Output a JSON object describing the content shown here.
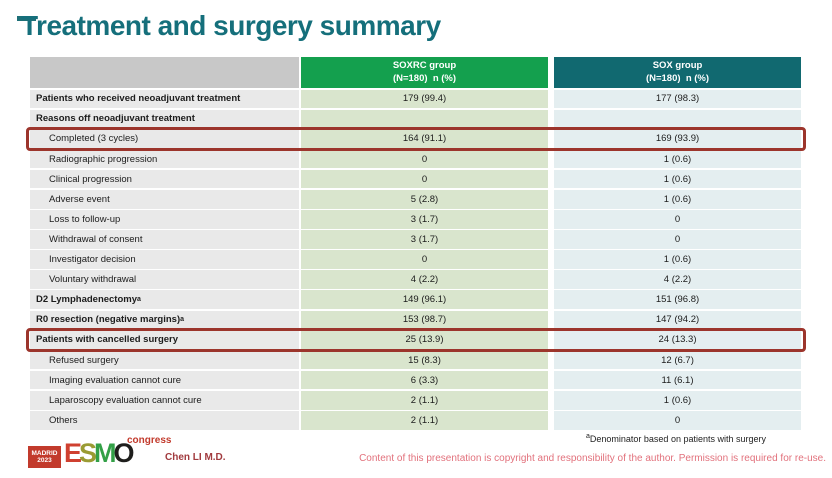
{
  "slide_title": "Treatment and surgery summary",
  "table": {
    "header": {
      "soxrc": {
        "line1": "SOXRC group",
        "line2": "(N=180)  n (%)"
      },
      "sox": {
        "line1": "SOX group",
        "line2": "(N=180)  n (%)"
      }
    },
    "rows": [
      {
        "label": "Patients who received neoadjuvant treatment",
        "bold": true,
        "indent": false,
        "soxrc": "179 (99.4)",
        "sox": "177 (98.3)",
        "highlight": false
      },
      {
        "label": "Reasons off neoadjuvant treatment",
        "bold": true,
        "indent": false,
        "soxrc": "",
        "sox": "",
        "highlight": false
      },
      {
        "label": "Completed (3 cycles)",
        "bold": false,
        "indent": true,
        "soxrc": "164 (91.1)",
        "sox": "169 (93.9)",
        "highlight": true
      },
      {
        "label": "Radiographic progression",
        "bold": false,
        "indent": true,
        "soxrc": "0",
        "sox": "1 (0.6)",
        "highlight": false
      },
      {
        "label": "Clinical progression",
        "bold": false,
        "indent": true,
        "soxrc": "0",
        "sox": "1 (0.6)",
        "highlight": false
      },
      {
        "label": "Adverse event",
        "bold": false,
        "indent": true,
        "soxrc": "5 (2.8)",
        "sox": "1 (0.6)",
        "highlight": false
      },
      {
        "label": "Loss to follow-up",
        "bold": false,
        "indent": true,
        "soxrc": "3 (1.7)",
        "sox": "0",
        "highlight": false
      },
      {
        "label": "Withdrawal of consent",
        "bold": false,
        "indent": true,
        "soxrc": "3 (1.7)",
        "sox": "0",
        "highlight": false
      },
      {
        "label": "Investigator decision",
        "bold": false,
        "indent": true,
        "soxrc": "0",
        "sox": "1 (0.6)",
        "highlight": false
      },
      {
        "label": "Voluntary withdrawal",
        "bold": false,
        "indent": true,
        "soxrc": "4 (2.2)",
        "sox": "4 (2.2)",
        "highlight": false
      },
      {
        "label": "D2 Lymphadenectomy",
        "sup": "a",
        "bold": true,
        "indent": false,
        "soxrc": "149 (96.1)",
        "sox": "151 (96.8)",
        "highlight": false
      },
      {
        "label": "R0 resection (negative margins)",
        "sup": "a",
        "bold": true,
        "indent": false,
        "soxrc": "153 (98.7)",
        "sox": "147 (94.2)",
        "highlight": false
      },
      {
        "label": "Patients with cancelled surgery",
        "bold": true,
        "indent": false,
        "soxrc": "25 (13.9)",
        "sox": "24 (13.3)",
        "highlight": true
      },
      {
        "label": "Refused surgery",
        "bold": false,
        "indent": true,
        "soxrc": "15 (8.3)",
        "sox": "12 (6.7)",
        "highlight": false
      },
      {
        "label": "Imaging evaluation cannot cure",
        "bold": false,
        "indent": true,
        "soxrc": "6 (3.3)",
        "sox": "11 (6.1)",
        "highlight": false
      },
      {
        "label": "Laparoscopy evaluation cannot cure",
        "bold": false,
        "indent": true,
        "soxrc": "2 (1.1)",
        "sox": "1 (0.6)",
        "highlight": false
      },
      {
        "label": "Others",
        "bold": false,
        "indent": true,
        "soxrc": "2 (1.1)",
        "sox": "0",
        "highlight": false
      }
    ]
  },
  "footnote": {
    "sup": "a",
    "text": "Denominator based on patients with surgery"
  },
  "footer": {
    "presenter": "Chen LI M.D.",
    "copyright": "Content of this presentation is copyright and responsibility of the author. Permission is required for re-use.",
    "logo": {
      "badge_line1": "MADRID",
      "badge_line2": "2023",
      "letter_e": "E",
      "letter_s": "S",
      "letter_m": "M",
      "letter_o": "O",
      "congress": "congress"
    }
  },
  "colors": {
    "title_text": "#156f7b",
    "soxrc_header_bg": "#14a04e",
    "sox_header_bg": "#116970",
    "header_empty_bg": "#c8c8c8",
    "label_column_bg": "#e9e9e9",
    "soxrc_column_bg": "#d9e5cd",
    "sox_column_bg": "#e4eef0",
    "highlight_border": "#9c352c",
    "copyright_text": "#e2717c",
    "presenter_text": "#a13a3e",
    "logo_red": "#c23a2c"
  }
}
